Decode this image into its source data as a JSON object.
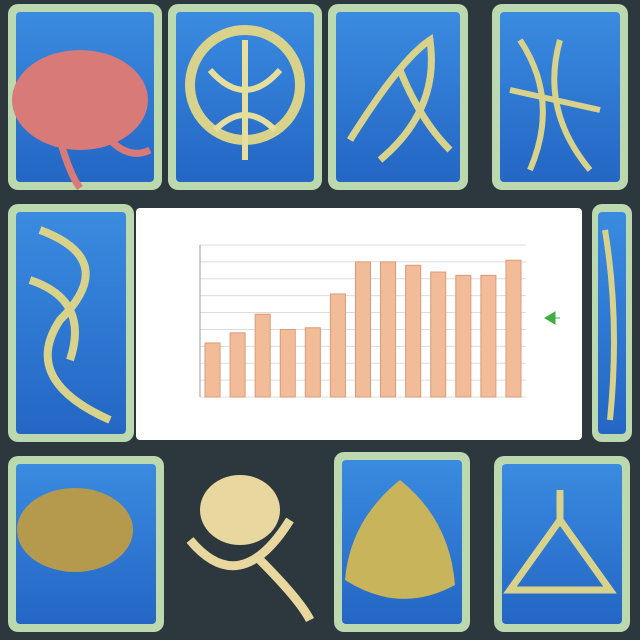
{
  "chart_data": {
    "type": "bar",
    "values": [
      3.2,
      3.8,
      4.9,
      4.0,
      4.1,
      6.1,
      8.0,
      8.0,
      7.8,
      7.4,
      7.2,
      7.2,
      8.1
    ],
    "color": "#f2bc98",
    "ylim": [
      0,
      9
    ],
    "yticks": [
      0,
      1,
      2,
      3,
      4,
      5,
      6,
      7,
      8,
      9
    ],
    "grid": true
  }
}
